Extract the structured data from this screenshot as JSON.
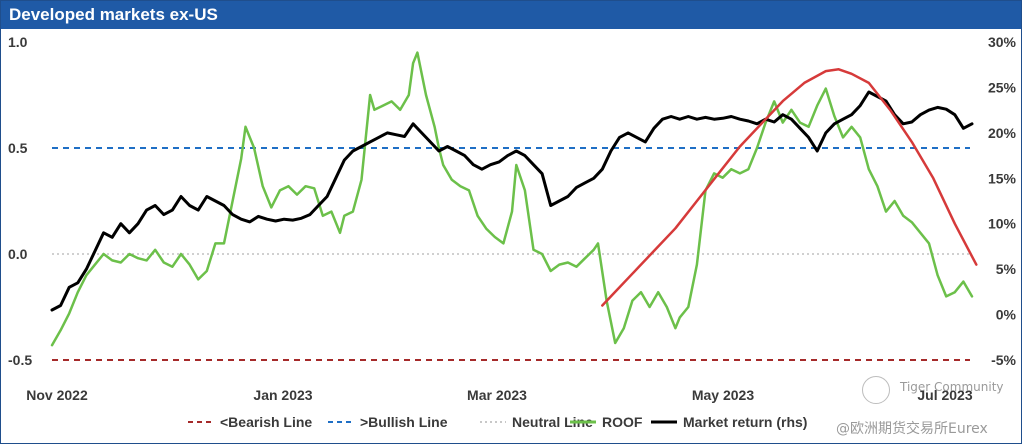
{
  "header": {
    "title": "Developed markets ex-US"
  },
  "watermark": {
    "line1": "Tiger Community",
    "line2": "@欧洲期货交易所Eurex"
  },
  "chart_data": {
    "type": "line",
    "title": "Developed markets ex-US",
    "x_ticks": [
      "Nov 2022",
      "Jan 2023",
      "Mar 2023",
      "May 2023",
      "Jul 2023"
    ],
    "y_left": {
      "range": [
        -0.5,
        1.0
      ],
      "ticks": [
        "1.0",
        "0.5",
        "0.0",
        "-0.5"
      ]
    },
    "y_right": {
      "range": [
        -5,
        30
      ],
      "ticks": [
        "30%",
        "25%",
        "20%",
        "15%",
        "10%",
        "5%",
        "0%",
        "-5%"
      ]
    },
    "reference_lines": [
      {
        "name": "<Bearish Line",
        "value": -0.5,
        "color": "#a52a2a",
        "style": "dashed"
      },
      {
        "name": ">Bullish Line",
        "value": 0.5,
        "color": "#1f6fc5",
        "style": "dashed"
      },
      {
        "name": "Neutral Line",
        "value": 0.0,
        "color": "#b5b5b5",
        "style": "dotted"
      }
    ],
    "series": [
      {
        "name": "ROOF",
        "axis": "left",
        "color": "#6cc04a",
        "points": [
          [
            0,
            -0.43
          ],
          [
            2,
            -0.36
          ],
          [
            4,
            -0.28
          ],
          [
            6,
            -0.18
          ],
          [
            8,
            -0.1
          ],
          [
            10,
            -0.05
          ],
          [
            12,
            0.0
          ],
          [
            14,
            -0.03
          ],
          [
            16,
            -0.04
          ],
          [
            18,
            0.0
          ],
          [
            20,
            -0.02
          ],
          [
            22,
            -0.03
          ],
          [
            24,
            0.02
          ],
          [
            26,
            -0.04
          ],
          [
            28,
            -0.06
          ],
          [
            30,
            0.0
          ],
          [
            32,
            -0.05
          ],
          [
            34,
            -0.12
          ],
          [
            36,
            -0.08
          ],
          [
            38,
            0.05
          ],
          [
            40,
            0.05
          ],
          [
            42,
            0.25
          ],
          [
            44,
            0.45
          ],
          [
            45,
            0.6
          ],
          [
            47,
            0.5
          ],
          [
            49,
            0.32
          ],
          [
            51,
            0.22
          ],
          [
            53,
            0.3
          ],
          [
            55,
            0.32
          ],
          [
            57,
            0.28
          ],
          [
            59,
            0.32
          ],
          [
            61,
            0.31
          ],
          [
            63,
            0.18
          ],
          [
            65,
            0.2
          ],
          [
            67,
            0.1
          ],
          [
            68,
            0.18
          ],
          [
            70,
            0.2
          ],
          [
            72,
            0.35
          ],
          [
            73,
            0.55
          ],
          [
            74,
            0.75
          ],
          [
            75,
            0.68
          ],
          [
            77,
            0.7
          ],
          [
            79,
            0.72
          ],
          [
            81,
            0.68
          ],
          [
            83,
            0.75
          ],
          [
            84,
            0.9
          ],
          [
            85,
            0.95
          ],
          [
            87,
            0.75
          ],
          [
            89,
            0.6
          ],
          [
            90,
            0.5
          ],
          [
            91,
            0.42
          ],
          [
            93,
            0.35
          ],
          [
            95,
            0.32
          ],
          [
            97,
            0.3
          ],
          [
            99,
            0.18
          ],
          [
            101,
            0.12
          ],
          [
            103,
            0.08
          ],
          [
            105,
            0.05
          ],
          [
            107,
            0.2
          ],
          [
            108,
            0.42
          ],
          [
            110,
            0.3
          ],
          [
            112,
            0.02
          ],
          [
            114,
            0.0
          ],
          [
            116,
            -0.08
          ],
          [
            118,
            -0.05
          ],
          [
            120,
            -0.04
          ],
          [
            122,
            -0.06
          ],
          [
            124,
            -0.02
          ],
          [
            126,
            0.02
          ],
          [
            127,
            0.05
          ],
          [
            129,
            -0.22
          ],
          [
            131,
            -0.42
          ],
          [
            133,
            -0.35
          ],
          [
            135,
            -0.22
          ],
          [
            137,
            -0.18
          ],
          [
            139,
            -0.25
          ],
          [
            141,
            -0.18
          ],
          [
            143,
            -0.25
          ],
          [
            145,
            -0.35
          ],
          [
            146,
            -0.3
          ],
          [
            148,
            -0.25
          ],
          [
            150,
            -0.05
          ],
          [
            152,
            0.3
          ],
          [
            154,
            0.38
          ],
          [
            156,
            0.36
          ],
          [
            158,
            0.4
          ],
          [
            160,
            0.38
          ],
          [
            162,
            0.4
          ],
          [
            164,
            0.5
          ],
          [
            166,
            0.62
          ],
          [
            168,
            0.72
          ],
          [
            170,
            0.62
          ],
          [
            172,
            0.68
          ],
          [
            174,
            0.62
          ],
          [
            176,
            0.6
          ],
          [
            178,
            0.7
          ],
          [
            180,
            0.78
          ],
          [
            182,
            0.65
          ],
          [
            184,
            0.55
          ],
          [
            186,
            0.6
          ],
          [
            188,
            0.55
          ],
          [
            190,
            0.4
          ],
          [
            192,
            0.32
          ],
          [
            194,
            0.2
          ],
          [
            196,
            0.25
          ],
          [
            198,
            0.18
          ],
          [
            200,
            0.15
          ],
          [
            202,
            0.1
          ],
          [
            204,
            0.05
          ],
          [
            206,
            -0.1
          ],
          [
            208,
            -0.2
          ],
          [
            210,
            -0.18
          ],
          [
            212,
            -0.13
          ],
          [
            214,
            -0.2
          ]
        ]
      },
      {
        "name": "Market return (rhs)",
        "axis": "right",
        "color": "#000000",
        "points": [
          [
            0,
            0.5
          ],
          [
            2,
            1.0
          ],
          [
            4,
            3.0
          ],
          [
            6,
            3.5
          ],
          [
            8,
            5.0
          ],
          [
            10,
            7.0
          ],
          [
            12,
            9.0
          ],
          [
            14,
            8.5
          ],
          [
            16,
            10.0
          ],
          [
            18,
            9.0
          ],
          [
            20,
            10.0
          ],
          [
            22,
            11.5
          ],
          [
            24,
            12.0
          ],
          [
            26,
            11.0
          ],
          [
            28,
            11.5
          ],
          [
            30,
            13.0
          ],
          [
            32,
            12.0
          ],
          [
            34,
            11.5
          ],
          [
            36,
            13.0
          ],
          [
            38,
            12.5
          ],
          [
            40,
            12.0
          ],
          [
            42,
            11.0
          ],
          [
            44,
            10.5
          ],
          [
            46,
            10.2
          ],
          [
            48,
            10.8
          ],
          [
            50,
            10.5
          ],
          [
            52,
            10.3
          ],
          [
            54,
            10.5
          ],
          [
            56,
            10.4
          ],
          [
            58,
            10.6
          ],
          [
            60,
            11.0
          ],
          [
            62,
            12.0
          ],
          [
            64,
            13.0
          ],
          [
            66,
            15.0
          ],
          [
            68,
            17.0
          ],
          [
            70,
            18.0
          ],
          [
            72,
            18.5
          ],
          [
            74,
            19.0
          ],
          [
            76,
            19.5
          ],
          [
            78,
            20.0
          ],
          [
            80,
            19.8
          ],
          [
            82,
            19.6
          ],
          [
            84,
            21.0
          ],
          [
            86,
            20.0
          ],
          [
            88,
            19.0
          ],
          [
            90,
            18.0
          ],
          [
            92,
            18.5
          ],
          [
            94,
            18.0
          ],
          [
            96,
            17.5
          ],
          [
            98,
            16.5
          ],
          [
            100,
            16.0
          ],
          [
            102,
            16.5
          ],
          [
            104,
            16.8
          ],
          [
            106,
            17.5
          ],
          [
            108,
            18.0
          ],
          [
            110,
            17.5
          ],
          [
            112,
            16.5
          ],
          [
            114,
            15.5
          ],
          [
            116,
            12.0
          ],
          [
            118,
            12.5
          ],
          [
            120,
            13.0
          ],
          [
            122,
            14.0
          ],
          [
            124,
            14.5
          ],
          [
            126,
            15.0
          ],
          [
            128,
            16.0
          ],
          [
            130,
            18.0
          ],
          [
            132,
            19.5
          ],
          [
            134,
            20.0
          ],
          [
            136,
            19.5
          ],
          [
            138,
            19.0
          ],
          [
            140,
            20.5
          ],
          [
            142,
            21.5
          ],
          [
            144,
            21.8
          ],
          [
            146,
            21.5
          ],
          [
            148,
            21.8
          ],
          [
            150,
            21.5
          ],
          [
            152,
            21.7
          ],
          [
            154,
            21.5
          ],
          [
            156,
            21.6
          ],
          [
            158,
            21.8
          ],
          [
            160,
            21.5
          ],
          [
            162,
            21.3
          ],
          [
            164,
            21.0
          ],
          [
            166,
            21.5
          ],
          [
            168,
            21.2
          ],
          [
            170,
            22.0
          ],
          [
            172,
            21.5
          ],
          [
            174,
            20.5
          ],
          [
            176,
            19.5
          ],
          [
            178,
            18.0
          ],
          [
            180,
            20.0
          ],
          [
            182,
            21.0
          ],
          [
            184,
            21.5
          ],
          [
            186,
            22.0
          ],
          [
            188,
            23.0
          ],
          [
            190,
            24.5
          ],
          [
            192,
            24.0
          ],
          [
            194,
            23.5
          ],
          [
            196,
            22.0
          ],
          [
            198,
            21.0
          ],
          [
            200,
            21.2
          ],
          [
            202,
            22.0
          ],
          [
            204,
            22.5
          ],
          [
            206,
            22.8
          ],
          [
            208,
            22.6
          ],
          [
            210,
            22.0
          ],
          [
            212,
            20.5
          ],
          [
            214,
            21.0
          ]
        ]
      },
      {
        "name": "trend-arc",
        "axis": "right",
        "color": "#d63a3a",
        "points": [
          [
            128,
            1.0
          ],
          [
            130,
            2.0
          ],
          [
            135,
            4.5
          ],
          [
            140,
            7.0
          ],
          [
            145,
            9.5
          ],
          [
            150,
            12.5
          ],
          [
            155,
            15.5
          ],
          [
            160,
            18.5
          ],
          [
            165,
            21.0
          ],
          [
            170,
            23.5
          ],
          [
            175,
            25.5
          ],
          [
            180,
            26.8
          ],
          [
            183,
            27.0
          ],
          [
            186,
            26.5
          ],
          [
            190,
            25.5
          ],
          [
            195,
            22.5
          ],
          [
            200,
            19.0
          ],
          [
            205,
            15.0
          ],
          [
            210,
            10.0
          ],
          [
            215,
            5.5
          ]
        ]
      }
    ],
    "legend": {
      "placement": "bottom",
      "entries": [
        "<Bearish Line",
        ">Bullish Line",
        "Neutral Line",
        "ROOF",
        "Market return (rhs)"
      ]
    },
    "grid": false
  }
}
